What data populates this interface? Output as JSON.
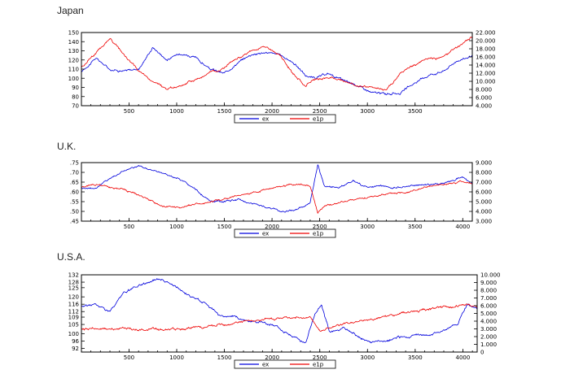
{
  "chart_data": [
    {
      "type": "line",
      "title": "Japan",
      "x_ticks": [
        500,
        1000,
        1500,
        2000,
        2500,
        3000,
        3500
      ],
      "xlim": [
        1,
        4100
      ],
      "left_axis": {
        "ticks": [
          70,
          80,
          90,
          100,
          110,
          120,
          130,
          140,
          150
        ],
        "ylim": [
          70,
          150
        ]
      },
      "right_axis": {
        "ticks": [
          "4.000",
          "6.000",
          "8.000",
          "10.000",
          "12.000",
          "14.000",
          "16.000",
          "18.000",
          "20.000",
          "22.000"
        ],
        "ylim": [
          4,
          22
        ]
      },
      "series": [
        {
          "name": "ex",
          "color": "#0000dd",
          "axis": "left",
          "x": [
            1,
            150,
            300,
            450,
            600,
            750,
            900,
            1050,
            1200,
            1350,
            1500,
            1650,
            1800,
            1950,
            2100,
            2250,
            2350,
            2450,
            2600,
            2750,
            2900,
            3050,
            3200,
            3350,
            3500,
            3650,
            3800,
            3950,
            4100
          ],
          "values": [
            107,
            122,
            110,
            108,
            110,
            134,
            120,
            128,
            122,
            110,
            105,
            118,
            127,
            128,
            125,
            115,
            103,
            100,
            105,
            97,
            92,
            84,
            83,
            84,
            95,
            104,
            108,
            120,
            124
          ]
        },
        {
          "name": "e1p",
          "color": "#ee0000",
          "axis": "right",
          "x": [
            1,
            150,
            300,
            450,
            600,
            750,
            900,
            1050,
            1200,
            1350,
            1500,
            1650,
            1800,
            1950,
            2100,
            2250,
            2350,
            2450,
            2600,
            2750,
            2900,
            3050,
            3200,
            3350,
            3500,
            3650,
            3800,
            3950,
            4100
          ],
          "values": [
            13.5,
            17.0,
            20.5,
            16.5,
            12.5,
            10.0,
            8.0,
            9.0,
            10.5,
            12.0,
            13.5,
            16.0,
            17.5,
            18.5,
            16.0,
            11.0,
            9.0,
            10.5,
            11.0,
            10.0,
            9.0,
            8.5,
            8.0,
            12.0,
            14.0,
            15.5,
            16.0,
            18.5,
            21.0
          ]
        }
      ],
      "legend": [
        "ex",
        "e1p"
      ]
    },
    {
      "type": "line",
      "title": "U.K.",
      "x_ticks": [
        500,
        1000,
        1500,
        2000,
        2500,
        3000,
        3500,
        4000
      ],
      "xlim": [
        1,
        4100
      ],
      "left_axis": {
        "ticks": [
          ".45",
          ".50",
          ".55",
          ".60",
          ".65",
          ".70",
          ".75"
        ],
        "ylim": [
          0.45,
          0.75
        ]
      },
      "right_axis": {
        "ticks": [
          "3.000",
          "4.000",
          "5.000",
          "6.000",
          "7.000",
          "8.000",
          "9.000"
        ],
        "ylim": [
          3,
          9
        ]
      },
      "series": [
        {
          "name": "ex",
          "color": "#0000dd",
          "axis": "left",
          "x": [
            1,
            150,
            300,
            450,
            600,
            750,
            900,
            1050,
            1200,
            1350,
            1500,
            1650,
            1800,
            1950,
            2100,
            2250,
            2400,
            2480,
            2550,
            2700,
            2850,
            3000,
            3150,
            3300,
            3450,
            3600,
            3750,
            3900,
            4000,
            4100
          ],
          "values": [
            0.62,
            0.62,
            0.67,
            0.71,
            0.73,
            0.71,
            0.69,
            0.66,
            0.61,
            0.55,
            0.55,
            0.56,
            0.54,
            0.52,
            0.5,
            0.51,
            0.54,
            0.74,
            0.63,
            0.62,
            0.66,
            0.62,
            0.63,
            0.62,
            0.63,
            0.64,
            0.64,
            0.66,
            0.68,
            0.64
          ]
        },
        {
          "name": "e1p",
          "color": "#ee0000",
          "axis": "right",
          "x": [
            1,
            150,
            300,
            450,
            600,
            750,
            900,
            1050,
            1200,
            1350,
            1500,
            1650,
            1800,
            1950,
            2100,
            2250,
            2400,
            2480,
            2550,
            2700,
            2850,
            3000,
            3150,
            3300,
            3450,
            3600,
            3750,
            3900,
            4000,
            4100
          ],
          "values": [
            6.5,
            6.8,
            6.5,
            6.3,
            5.7,
            5.0,
            4.5,
            4.3,
            4.8,
            5.0,
            5.3,
            5.6,
            5.9,
            6.2,
            6.6,
            6.8,
            6.7,
            3.8,
            4.6,
            4.9,
            5.2,
            5.4,
            5.7,
            5.9,
            6.1,
            6.4,
            6.7,
            6.9,
            7.0,
            6.8
          ]
        }
      ],
      "legend": [
        "ex",
        "e1p"
      ]
    },
    {
      "type": "line",
      "title": "U.S.A.",
      "x_ticks": [
        500,
        1000,
        1500,
        2000,
        2500,
        3000,
        3500,
        4000
      ],
      "xlim": [
        1,
        4150
      ],
      "left_axis": {
        "ticks": [
          92,
          96,
          100,
          105,
          109,
          112,
          116,
          120,
          125,
          128,
          132
        ],
        "ylim": [
          90,
          132
        ]
      },
      "right_axis": {
        "ticks": [
          "0",
          "1.000",
          "2.000",
          "3.000",
          "4.000",
          "5.000",
          "6.000",
          "7.000",
          "8.000",
          "9.000",
          "10.000"
        ],
        "ylim": [
          0,
          10
        ]
      },
      "series": [
        {
          "name": "ex",
          "color": "#0000dd",
          "axis": "left",
          "x": [
            1,
            150,
            300,
            450,
            600,
            750,
            850,
            1000,
            1150,
            1300,
            1450,
            1600,
            1750,
            1900,
            2050,
            2200,
            2350,
            2450,
            2520,
            2600,
            2750,
            2900,
            3050,
            3200,
            3350,
            3500,
            3650,
            3800,
            3950,
            4050,
            4150
          ],
          "values": [
            115,
            116,
            112,
            122,
            126,
            129,
            130,
            125,
            120,
            117,
            110,
            109,
            107,
            106,
            104,
            99,
            95,
            111,
            115,
            101,
            103,
            98,
            95,
            96,
            98,
            99,
            99,
            102,
            106,
            116,
            114
          ]
        },
        {
          "name": "e1p",
          "color": "#ee0000",
          "axis": "right",
          "x": [
            1,
            150,
            300,
            450,
            600,
            750,
            900,
            1050,
            1200,
            1350,
            1500,
            1650,
            1800,
            1950,
            2100,
            2250,
            2400,
            2500,
            2600,
            2750,
            2900,
            3050,
            3200,
            3350,
            3500,
            3650,
            3800,
            3950,
            4050,
            4150
          ],
          "values": [
            2.9,
            3.0,
            2.9,
            3.1,
            2.8,
            3.0,
            2.8,
            3.0,
            3.2,
            3.3,
            3.6,
            3.9,
            4.0,
            4.2,
            4.4,
            4.5,
            4.5,
            2.8,
            3.2,
            3.6,
            4.0,
            4.3,
            4.6,
            4.9,
            5.2,
            5.5,
            5.8,
            6.0,
            6.2,
            5.9
          ]
        }
      ],
      "legend": [
        "ex",
        "e1p"
      ]
    }
  ]
}
